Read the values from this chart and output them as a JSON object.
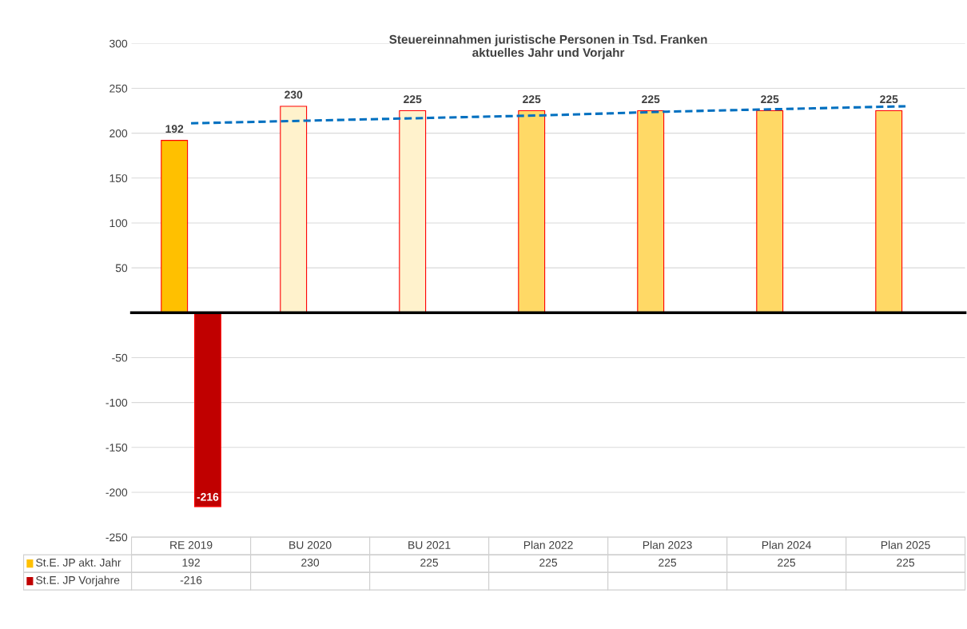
{
  "chart_data": {
    "type": "bar",
    "title": "Steuereinnahmen juristische Personen in Tsd. Franken\naktuelles Jahr und Vorjahr",
    "categories": [
      "RE 2019",
      "BU 2020",
      "BU 2021",
      "Plan 2022",
      "Plan 2023",
      "Plan 2024",
      "Plan 2025"
    ],
    "series": [
      {
        "name": "St.E. JP akt. Jahr",
        "color": "#ffc000",
        "colors": [
          "#ffc000",
          "#fff2cc",
          "#fff2cc",
          "#ffd966",
          "#ffd966",
          "#ffd966",
          "#ffd966"
        ],
        "values": [
          192,
          230,
          225,
          225,
          225,
          225,
          225
        ],
        "value_labels": [
          "192",
          "230",
          "225",
          "225",
          "225",
          "225",
          "225"
        ]
      },
      {
        "name": "St.E. JP Vorjahre",
        "color": "#c00000",
        "values": [
          -216,
          null,
          null,
          null,
          null,
          null,
          null
        ],
        "value_labels": [
          "-216",
          null,
          null,
          null,
          null,
          null,
          null
        ]
      },
      {
        "type": "line",
        "color": "#0070c0",
        "line_style": "dashed",
        "values": [
          211,
          214,
          217,
          220,
          224,
          227,
          230
        ]
      }
    ],
    "ylim": [
      -250,
      300
    ],
    "yticks": [
      -250,
      -200,
      -150,
      -100,
      -50,
      {
        "value": 0,
        "label": null
      },
      50,
      100,
      150,
      200,
      250,
      300
    ],
    "grid": "y",
    "legend": "bottom"
  }
}
